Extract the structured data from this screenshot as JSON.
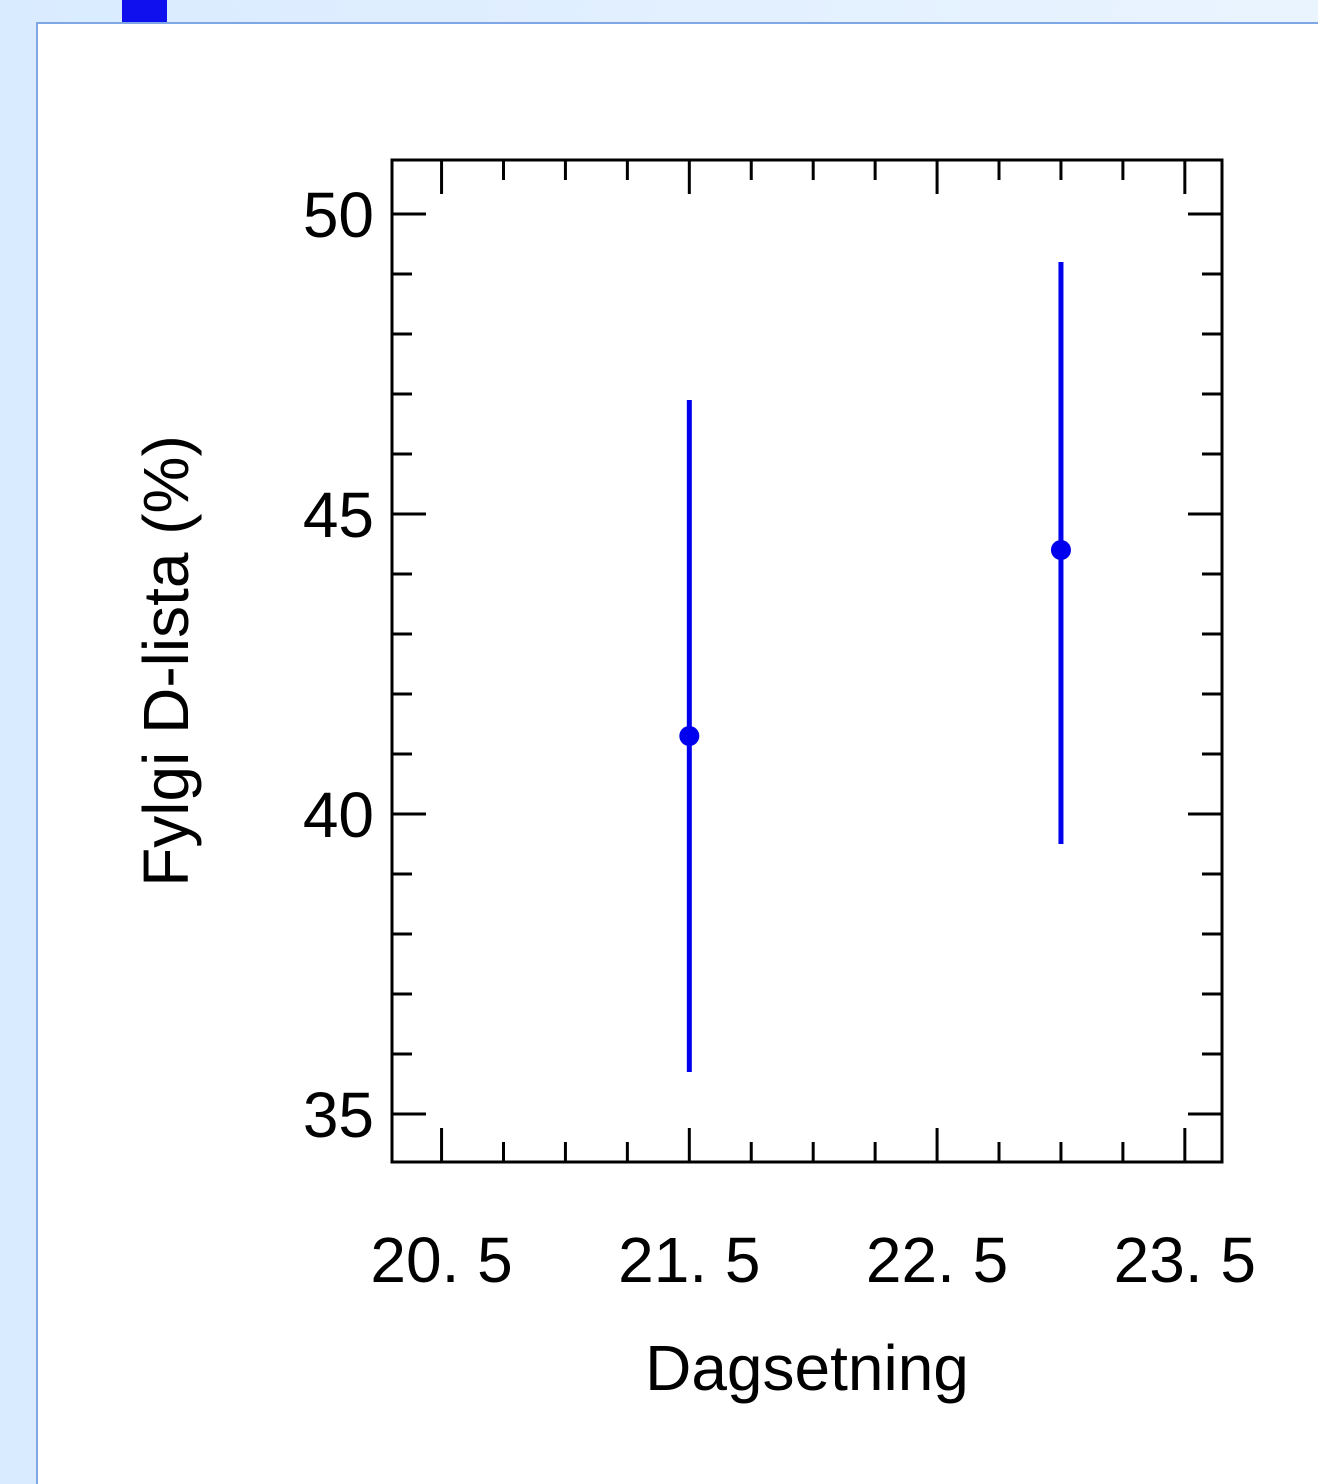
{
  "colors": {
    "background": "#e3f0ff",
    "panel_border": "#7fa7e6",
    "series": "#0000ee",
    "window_marker": "#1010ee"
  },
  "chart_data": {
    "type": "scatter",
    "xlabel": "Dagsetning",
    "ylabel": "Fylgi D-lista (%)",
    "xlim": [
      20.3,
      23.65
    ],
    "ylim": [
      34.2,
      50.9
    ],
    "xticks": [
      20.5,
      21.5,
      22.5,
      23.5
    ],
    "xtick_labels": [
      "20. 5",
      "21. 5",
      "22. 5",
      "23. 5"
    ],
    "yticks": [
      35,
      40,
      45,
      50
    ],
    "ytick_labels": [
      "35",
      "40",
      "45",
      "50"
    ],
    "x_minor_step": 0.25,
    "y_minor_step": 1,
    "grid": false,
    "series": [
      {
        "points": [
          {
            "x": 21.5,
            "y": 41.3,
            "y_low": 35.7,
            "y_high": 46.9
          },
          {
            "x": 23.0,
            "y": 44.4,
            "y_low": 39.5,
            "y_high": 49.2
          }
        ]
      }
    ]
  }
}
